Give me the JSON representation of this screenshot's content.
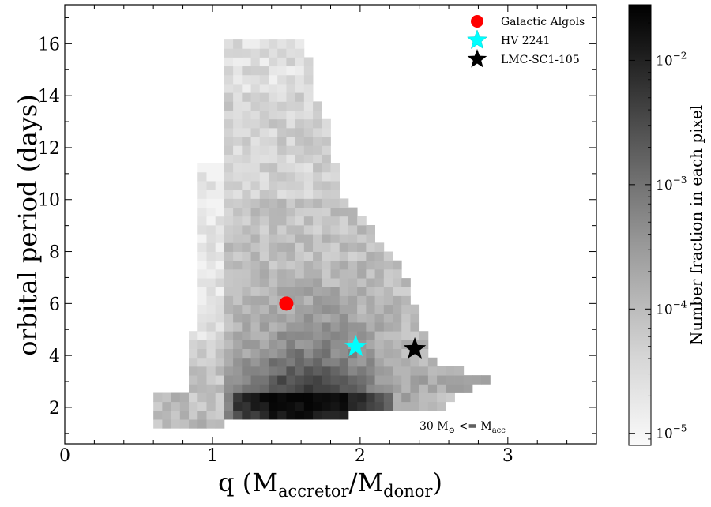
{
  "chart_data": {
    "type": "heatmap",
    "xlabel_main": "q (M",
    "xlabel_sub1": "accretor",
    "xlabel_mid": "/M",
    "xlabel_sub2": "donor",
    "xlabel_end": ")",
    "ylabel": "orbital period (days)",
    "xlim": [
      0,
      3.6
    ],
    "ylim": [
      0.6,
      17.5
    ],
    "xticks": [
      {
        "v": 0,
        "label": "0"
      },
      {
        "v": 1,
        "label": "1"
      },
      {
        "v": 2,
        "label": "2"
      },
      {
        "v": 3,
        "label": "3"
      }
    ],
    "yticks": [
      {
        "v": 2,
        "label": "2"
      },
      {
        "v": 4,
        "label": "4"
      },
      {
        "v": 6,
        "label": "6"
      },
      {
        "v": 8,
        "label": "8"
      },
      {
        "v": 10,
        "label": "10"
      },
      {
        "v": 12,
        "label": "12"
      },
      {
        "v": 14,
        "label": "14"
      },
      {
        "v": 16,
        "label": "16"
      }
    ],
    "legend": [
      {
        "name": "Galactic Algols",
        "marker": "circle",
        "color": "#ff0000"
      },
      {
        "name": "HV 2241",
        "marker": "star",
        "color": "#00ffff"
      },
      {
        "name": "LMC-SC1-105",
        "marker": "star",
        "color": "#000000"
      }
    ],
    "points": [
      {
        "name": "Galactic Algols",
        "x": 1.5,
        "y": 6.0,
        "marker": "circle",
        "color": "#ff0000"
      },
      {
        "name": "HV 2241",
        "x": 1.97,
        "y": 4.34,
        "marker": "star",
        "color": "#00ffff"
      },
      {
        "name": "LMC-SC1-105",
        "x": 2.37,
        "y": 4.25,
        "marker": "star",
        "color": "#000000"
      }
    ],
    "annotation": {
      "pre": "30 M",
      "sun_symbol": "⊙",
      "mid": " <= M",
      "sub": "acc"
    },
    "colorbar": {
      "label": "Number fraction in each pixel",
      "scale": "log",
      "min": 8e-06,
      "max": 0.028,
      "ticks": [
        {
          "v": 0.01,
          "base": "10",
          "exp": "−2"
        },
        {
          "v": 0.001,
          "base": "10",
          "exp": "−3"
        },
        {
          "v": 0.0001,
          "base": "10",
          "exp": "−4"
        },
        {
          "v": 1e-05,
          "base": "10",
          "exp": "−5"
        }
      ]
    },
    "bin_width": 0.06,
    "bin_height": 0.34
  }
}
